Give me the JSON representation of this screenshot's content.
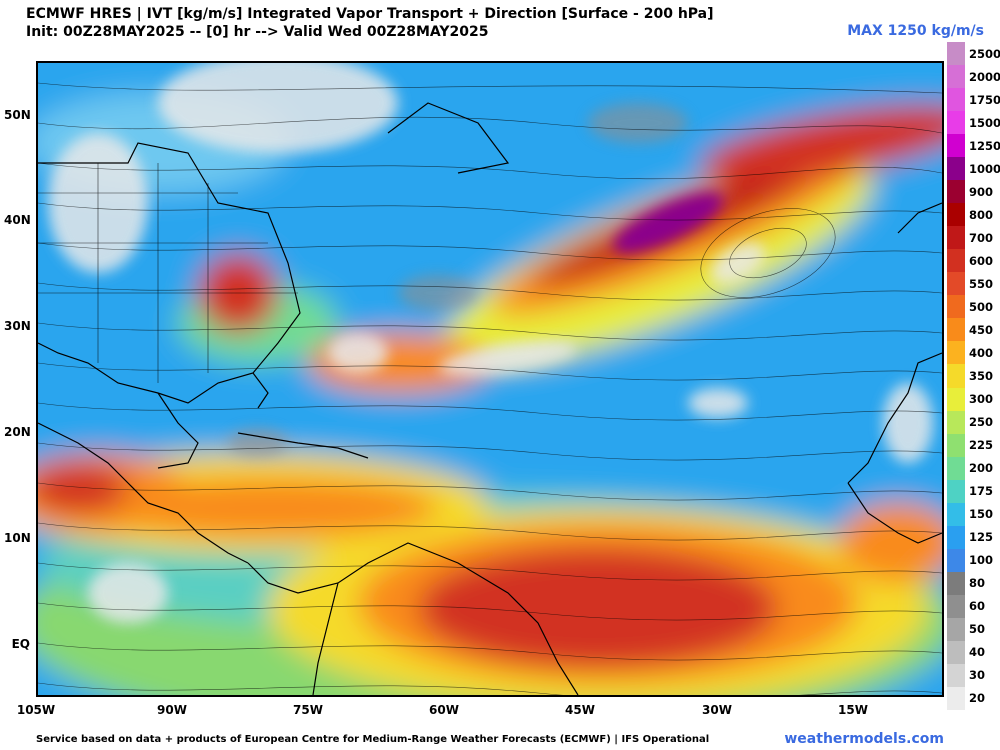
{
  "header": {
    "title_line1": "ECMWF HRES | IVT [kg/m/s] Integrated Vapor Transport + Direction [Surface - 200 hPa]",
    "title_line2": "Init: 00Z28MAY2025 -- [0] hr --> Valid Wed 00Z28MAY2025",
    "max_label": "MAX 1250 kg/m/s"
  },
  "map": {
    "lat_labels": [
      "50N",
      "40N",
      "30N",
      "20N",
      "10N",
      "EQ"
    ],
    "lon_labels": [
      "105W",
      "90W",
      "75W",
      "60W",
      "45W",
      "30W",
      "15W"
    ]
  },
  "colorbar": {
    "labels": [
      "2500",
      "2000",
      "1750",
      "1500",
      "1250",
      "1000",
      "900",
      "800",
      "700",
      "600",
      "550",
      "500",
      "450",
      "400",
      "350",
      "300",
      "250",
      "225",
      "200",
      "175",
      "150",
      "125",
      "100",
      "80",
      "60",
      "50",
      "40",
      "30",
      "20"
    ],
    "colors": [
      "#c78cc7",
      "#d66fd6",
      "#e055e0",
      "#e83ce8",
      "#d000d0",
      "#8b008b",
      "#9b0030",
      "#aa0000",
      "#c01818",
      "#d23020",
      "#e34a28",
      "#f06a1e",
      "#f98b1a",
      "#fcb21f",
      "#f5da2a",
      "#e8ee3a",
      "#b8e85a",
      "#8fe070",
      "#70dc94",
      "#4ed2c4",
      "#33bde8",
      "#2a9ff0",
      "#3d88e8",
      "#7c7c7c",
      "#8f8f8f",
      "#a6a6a6",
      "#bdbdbd",
      "#d4d4d4",
      "#ececec"
    ]
  },
  "footer": {
    "credit": "Service based on data + products of European Centre for Medium-Range Weather Forecasts (ECMWF) | IFS Operational",
    "brand": "weathermodels.com"
  }
}
